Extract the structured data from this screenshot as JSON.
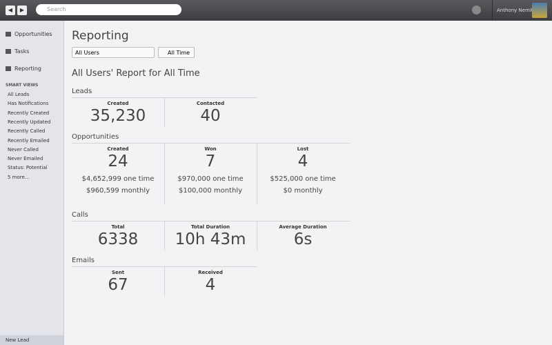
{
  "topbar": {
    "search_placeholder": "Search",
    "user_name": "Anthony Nemitz"
  },
  "sidebar": {
    "nav": [
      "Opportunities",
      "Tasks",
      "Reporting"
    ],
    "smart_views_title": "SMART VIEWS",
    "smart_views": [
      "All Leads",
      "Has Notifications",
      "Recently Created",
      "Recently Updated",
      "Recently Called",
      "Recently Emailed",
      "Never Called",
      "Never Emailed",
      "Status: Potential",
      "5 more..."
    ],
    "new_lead": "New Lead"
  },
  "main": {
    "title": "Reporting",
    "user_filter": "All Users",
    "time_filter": "All Time",
    "report_title": "All Users' Report for All Time",
    "sections": [
      {
        "title": "Leads",
        "stats": [
          {
            "label": "Created",
            "value": "35,230"
          },
          {
            "label": "Contacted",
            "value": "40"
          }
        ]
      },
      {
        "title": "Opportunities",
        "stats": [
          {
            "label": "Created",
            "value": "24",
            "details": [
              "$4,652,999 one time",
              "$960,599 monthly"
            ]
          },
          {
            "label": "Won",
            "value": "7",
            "details": [
              "$970,000 one time",
              "$100,000 monthly"
            ]
          },
          {
            "label": "Lost",
            "value": "4",
            "details": [
              "$525,000 one time",
              "$0 monthly"
            ]
          }
        ]
      },
      {
        "title": "Calls",
        "stats": [
          {
            "label": "Total",
            "value": "6338"
          },
          {
            "label": "Total Duration",
            "value": "10h 43m"
          },
          {
            "label": "Average Duration",
            "value": "6s"
          }
        ]
      },
      {
        "title": "Emails",
        "stats": [
          {
            "label": "Sent",
            "value": "67"
          },
          {
            "label": "Received",
            "value": "4"
          }
        ]
      }
    ]
  }
}
